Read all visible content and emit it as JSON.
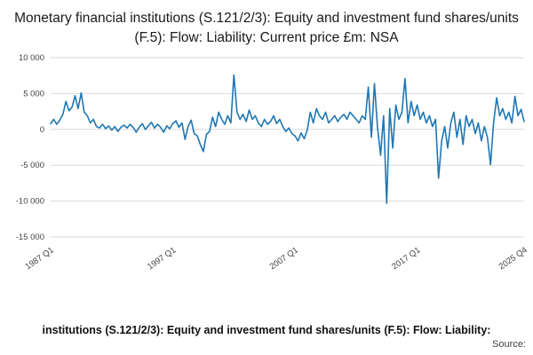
{
  "title": "Monetary financial institutions (S.121/2/3): Equity and investment fund shares/units (F.5): Flow: Liability: Current price £m: NSA",
  "footer": {
    "caption": "institutions (S.121/2/3): Equity and investment fund shares/units (F.5): Flow: Liability:",
    "source_label": "Source:"
  },
  "chart_data": {
    "type": "line",
    "title": "Monetary financial institutions (S.121/2/3): Equity and investment fund shares/units (F.5): Flow: Liability: Current price £m: NSA",
    "xlabel": "",
    "ylabel": "",
    "ylim": [
      -15000,
      10000
    ],
    "grid": true,
    "legend": "none",
    "line_color": "#1f77b4",
    "grid_color": "#d9d9d9",
    "tick_color": "#444444",
    "frequency": "quarterly",
    "x_start": "1987 Q1",
    "x_end": "2025 Q4",
    "y_ticks": [
      10000,
      5000,
      0,
      -5000,
      -10000,
      -15000
    ],
    "y_tick_labels": [
      "10 000",
      "5 000",
      "0",
      "-5 000",
      "-10 000",
      "-15 000"
    ],
    "x_ticks": [
      {
        "label": "1987 Q1",
        "index": 0
      },
      {
        "label": "1997 Q1",
        "index": 40
      },
      {
        "label": "2007 Q1",
        "index": 80
      },
      {
        "label": "2017 Q1",
        "index": 120
      },
      {
        "label": "2025 Q4",
        "index": 155
      }
    ],
    "values": [
      800,
      1400,
      700,
      1300,
      2100,
      3900,
      2600,
      3100,
      4700,
      2900,
      5100,
      2400,
      1900,
      900,
      1400,
      400,
      200,
      700,
      100,
      500,
      -100,
      400,
      -300,
      300,
      600,
      200,
      700,
      300,
      -400,
      300,
      800,
      0,
      500,
      1000,
      200,
      700,
      300,
      -400,
      500,
      100,
      800,
      1200,
      300,
      900,
      -1400,
      400,
      1300,
      -600,
      -900,
      -2100,
      -3100,
      -700,
      -300,
      1700,
      400,
      2400,
      1400,
      700,
      1900,
      900,
      7600,
      2400,
      1400,
      2100,
      1100,
      2700,
      1400,
      1900,
      900,
      400,
      1400,
      700,
      1100,
      1900,
      800,
      1400,
      400,
      -300,
      200,
      -600,
      -900,
      -1600,
      -500,
      -1300,
      -100,
      2400,
      900,
      2900,
      1900,
      1400,
      2400,
      900,
      1400,
      1900,
      1100,
      1700,
      2100,
      1400,
      2400,
      1900,
      1400,
      900,
      1900,
      1400,
      5900,
      -1100,
      6400,
      400,
      -3600,
      1900,
      -10300,
      2900,
      -2600,
      3400,
      1400,
      2400,
      7100,
      900,
      3900,
      1900,
      3400,
      1400,
      2400,
      900,
      1900,
      400,
      1400,
      -6800,
      -1600,
      400,
      -2600,
      900,
      2400,
      -1100,
      1400,
      -2100,
      1900,
      400,
      1400,
      -600,
      900,
      -1600,
      400,
      -1100,
      -4900,
      900,
      4400,
      1900,
      2900,
      1400,
      2400,
      900,
      4600,
      1900,
      2800,
      1100
    ]
  }
}
